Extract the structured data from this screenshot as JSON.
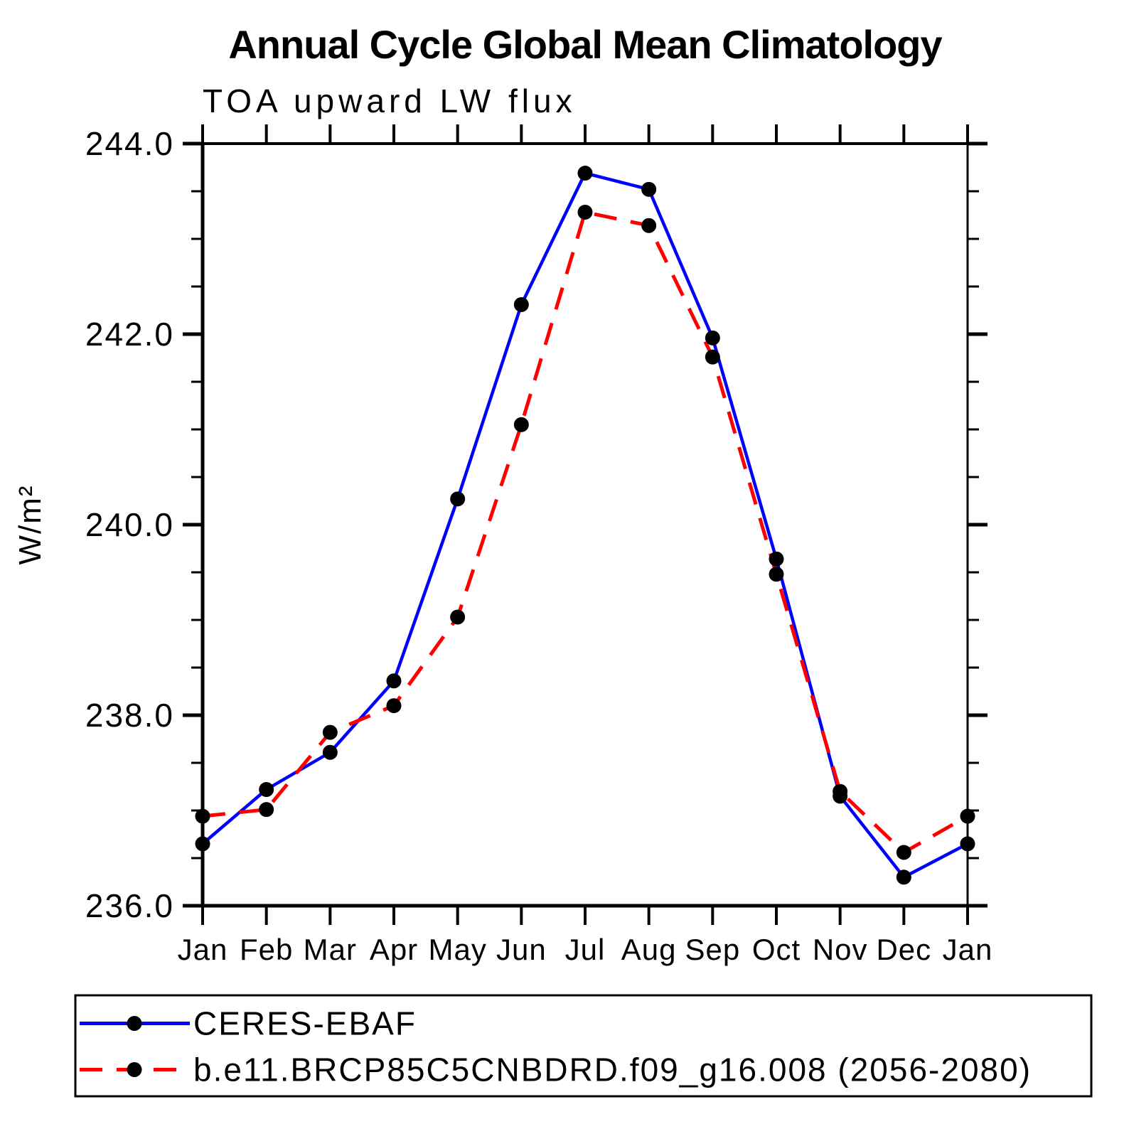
{
  "chart_data": {
    "type": "line",
    "title": "Annual Cycle Global Mean Climatology",
    "subtitle": "TOA upward LW flux",
    "ylabel": "W/m²",
    "xlabel": "",
    "categories": [
      "Jan",
      "Feb",
      "Mar",
      "Apr",
      "May",
      "Jun",
      "Jul",
      "Aug",
      "Sep",
      "Oct",
      "Nov",
      "Dec",
      "Jan"
    ],
    "ylim": [
      236.0,
      244.0
    ],
    "ytick_major_interval": 2.0,
    "ytick_minor_interval": 0.5,
    "ytick_labels": [
      "236.0",
      "238.0",
      "240.0",
      "242.0",
      "244.0"
    ],
    "grid": false,
    "legend_position": "bottom-left-box",
    "axis_color": "#000000",
    "marker_color": "#000000",
    "background_color": "#ffffff",
    "series": [
      {
        "name": "CERES-EBAF",
        "color": "#0000ff",
        "line_style": "solid",
        "marker": "filled-circle",
        "values": [
          236.65,
          237.22,
          237.61,
          238.36,
          240.27,
          242.31,
          243.69,
          243.52,
          241.96,
          239.64,
          237.15,
          236.3,
          236.65
        ]
      },
      {
        "name": "b.e11.BRCP85C5CNBDRD.f09_g16.008 (2056-2080)",
        "color": "#ff0000",
        "line_style": "dashed",
        "marker": "filled-circle",
        "values": [
          236.94,
          237.01,
          237.82,
          238.1,
          239.03,
          241.05,
          243.28,
          243.14,
          241.76,
          239.48,
          237.2,
          236.56,
          236.94
        ]
      }
    ]
  }
}
